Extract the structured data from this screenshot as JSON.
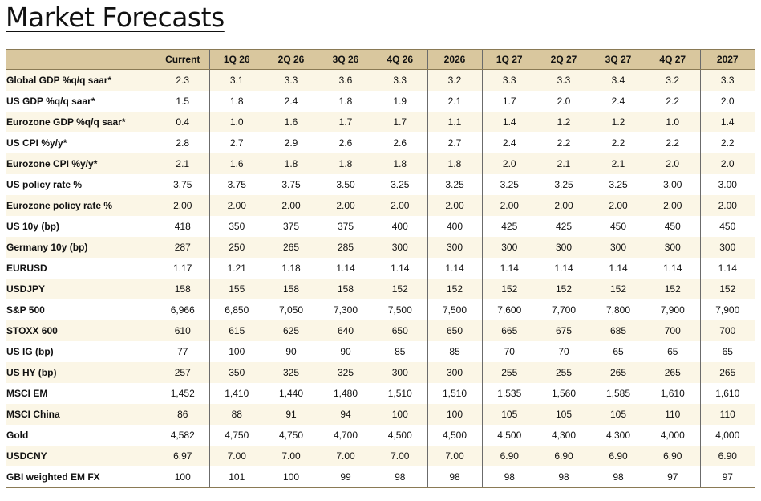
{
  "title": "Market Forecasts",
  "columns": [
    "Current",
    "1Q 26",
    "2Q 26",
    "3Q 26",
    "4Q 26",
    "2026",
    "1Q 27",
    "2Q 27",
    "3Q 27",
    "4Q 27",
    "2027"
  ],
  "rows": [
    {
      "label": "Global GDP %q/q saar*",
      "values": [
        "2.3",
        "3.1",
        "3.3",
        "3.6",
        "3.3",
        "3.2",
        "3.3",
        "3.3",
        "3.4",
        "3.2",
        "3.3"
      ]
    },
    {
      "label": "US GDP %q/q saar*",
      "values": [
        "1.5",
        "1.8",
        "2.4",
        "1.8",
        "1.9",
        "2.1",
        "1.7",
        "2.0",
        "2.4",
        "2.2",
        "2.0"
      ]
    },
    {
      "label": "Eurozone GDP %q/q saar*",
      "values": [
        "0.4",
        "1.0",
        "1.6",
        "1.7",
        "1.7",
        "1.1",
        "1.4",
        "1.2",
        "1.2",
        "1.0",
        "1.4"
      ]
    },
    {
      "label": "US CPI %y/y*",
      "values": [
        "2.8",
        "2.7",
        "2.9",
        "2.6",
        "2.6",
        "2.7",
        "2.4",
        "2.2",
        "2.2",
        "2.2",
        "2.2"
      ]
    },
    {
      "label": "Eurozone CPI %y/y*",
      "values": [
        "2.1",
        "1.6",
        "1.8",
        "1.8",
        "1.8",
        "1.8",
        "2.0",
        "2.1",
        "2.1",
        "2.0",
        "2.0"
      ]
    },
    {
      "label": "US policy rate %",
      "values": [
        "3.75",
        "3.75",
        "3.75",
        "3.50",
        "3.25",
        "3.25",
        "3.25",
        "3.25",
        "3.25",
        "3.00",
        "3.00"
      ]
    },
    {
      "label": "Eurozone policy rate %",
      "values": [
        "2.00",
        "2.00",
        "2.00",
        "2.00",
        "2.00",
        "2.00",
        "2.00",
        "2.00",
        "2.00",
        "2.00",
        "2.00"
      ]
    },
    {
      "label": "US 10y (bp)",
      "values": [
        "418",
        "350",
        "375",
        "375",
        "400",
        "400",
        "425",
        "425",
        "450",
        "450",
        "450"
      ]
    },
    {
      "label": "Germany 10y (bp)",
      "values": [
        "287",
        "250",
        "265",
        "285",
        "300",
        "300",
        "300",
        "300",
        "300",
        "300",
        "300"
      ]
    },
    {
      "label": "EURUSD",
      "values": [
        "1.17",
        "1.21",
        "1.18",
        "1.14",
        "1.14",
        "1.14",
        "1.14",
        "1.14",
        "1.14",
        "1.14",
        "1.14"
      ]
    },
    {
      "label": "USDJPY",
      "values": [
        "158",
        "155",
        "158",
        "158",
        "152",
        "152",
        "152",
        "152",
        "152",
        "152",
        "152"
      ]
    },
    {
      "label": "S&P 500",
      "values": [
        "6,966",
        "6,850",
        "7,050",
        "7,300",
        "7,500",
        "7,500",
        "7,600",
        "7,700",
        "7,800",
        "7,900",
        "7,900"
      ]
    },
    {
      "label": "STOXX 600",
      "values": [
        "610",
        "615",
        "625",
        "640",
        "650",
        "650",
        "665",
        "675",
        "685",
        "700",
        "700"
      ]
    },
    {
      "label": "US IG (bp)",
      "values": [
        "77",
        "100",
        "90",
        "90",
        "85",
        "85",
        "70",
        "70",
        "65",
        "65",
        "65"
      ]
    },
    {
      "label": "US HY (bp)",
      "values": [
        "257",
        "350",
        "325",
        "325",
        "300",
        "300",
        "255",
        "255",
        "265",
        "265",
        "265"
      ]
    },
    {
      "label": "MSCI EM",
      "values": [
        "1,452",
        "1,410",
        "1,440",
        "1,480",
        "1,510",
        "1,510",
        "1,535",
        "1,560",
        "1,585",
        "1,610",
        "1,610"
      ]
    },
    {
      "label": "MSCI China",
      "values": [
        "86",
        "88",
        "91",
        "94",
        "100",
        "100",
        "105",
        "105",
        "105",
        "110",
        "110"
      ]
    },
    {
      "label": "Gold",
      "values": [
        "4,582",
        "4,750",
        "4,750",
        "4,700",
        "4,500",
        "4,500",
        "4,500",
        "4,300",
        "4,300",
        "4,000",
        "4,000"
      ]
    },
    {
      "label": "USDCNY",
      "values": [
        "6.97",
        "7.00",
        "7.00",
        "7.00",
        "7.00",
        "7.00",
        "6.90",
        "6.90",
        "6.90",
        "6.90",
        "6.90"
      ]
    },
    {
      "label": "GBI weighted EM FX",
      "values": [
        "100",
        "101",
        "100",
        "99",
        "98",
        "98",
        "98",
        "98",
        "98",
        "97",
        "97"
      ]
    }
  ],
  "colors": {
    "header_bg": "#d9c79e",
    "band_bg": "#fbf6e6",
    "separator": "#6b6b6b"
  }
}
